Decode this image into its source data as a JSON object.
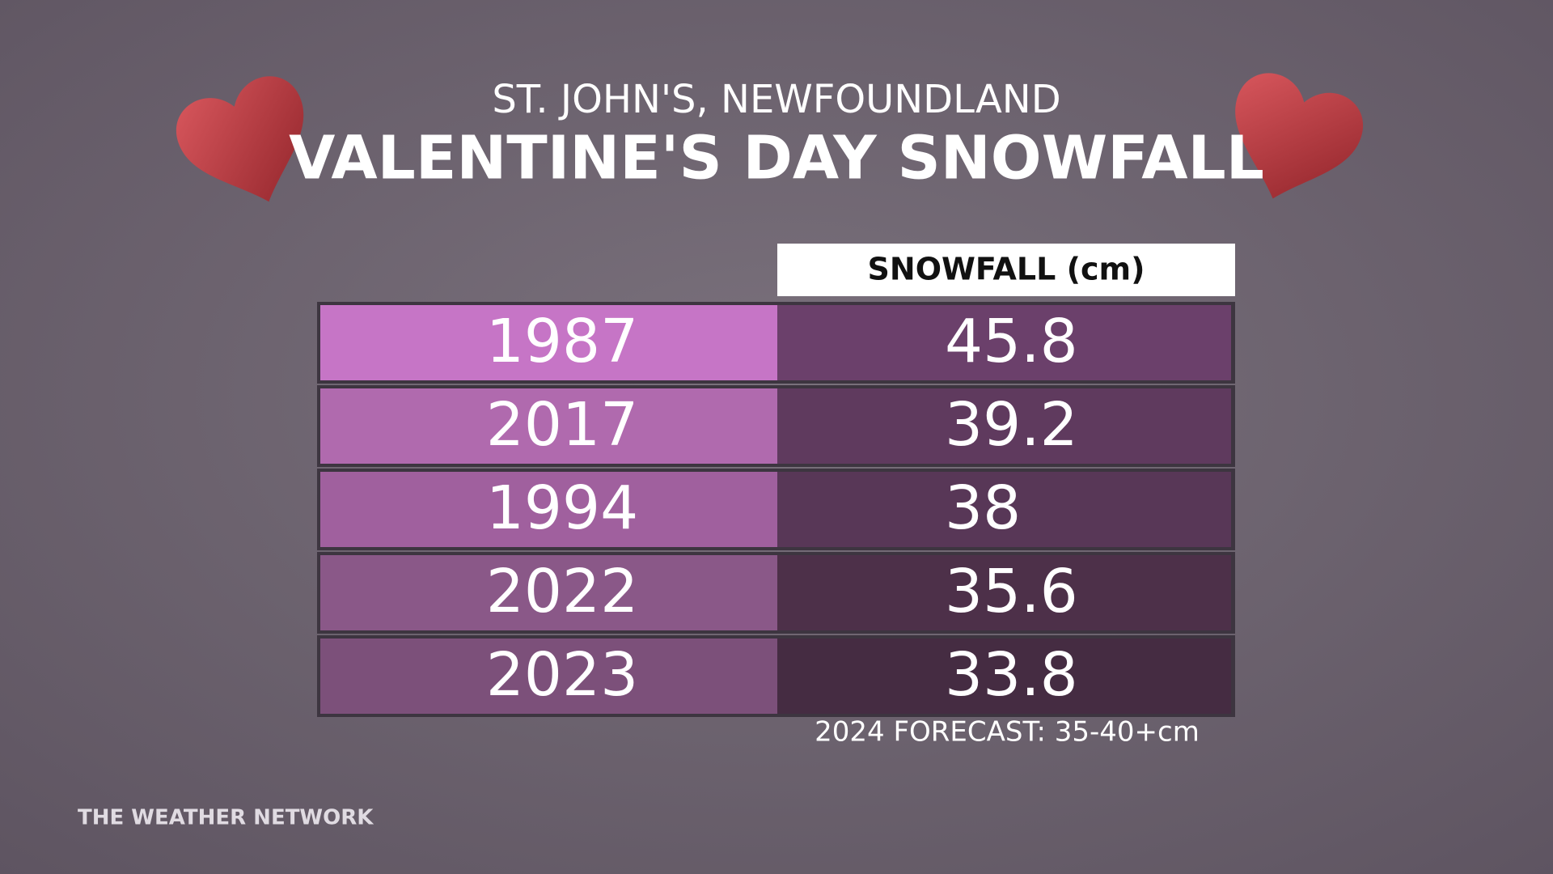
{
  "header": {
    "subtitle": "ST. JOHN'S, NEWFOUNDLAND",
    "title": "VALENTINE'S DAY SNOWFALL"
  },
  "table": {
    "column_header": "SNOWFALL (cm)",
    "rows": [
      [
        "1987",
        "45.8"
      ],
      [
        "2017",
        "39.2"
      ],
      [
        "1994",
        "38"
      ],
      [
        "2022",
        "35.6"
      ],
      [
        "2023",
        "33.8"
      ]
    ]
  },
  "footnote": "2024 FORECAST: 35-40+cm",
  "brand": "THE WEATHER NETWORK"
}
